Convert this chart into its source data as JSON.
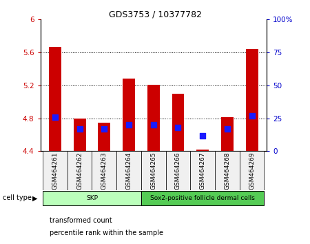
{
  "title": "GDS3753 / 10377782",
  "samples": [
    "GSM464261",
    "GSM464262",
    "GSM464263",
    "GSM464264",
    "GSM464265",
    "GSM464266",
    "GSM464267",
    "GSM464268",
    "GSM464269"
  ],
  "transformed_count": [
    5.67,
    4.8,
    4.75,
    5.28,
    5.21,
    5.1,
    4.42,
    4.81,
    5.64
  ],
  "percentile_rank": [
    26,
    17,
    17,
    20,
    20,
    18,
    12,
    17,
    27
  ],
  "ylim_left": [
    4.4,
    6.0
  ],
  "ylim_right": [
    0,
    100
  ],
  "yticks_left": [
    4.4,
    4.8,
    5.2,
    5.6,
    6.0
  ],
  "ytick_labels_left": [
    "4.4",
    "4.8",
    "5.2",
    "5.6",
    "6"
  ],
  "yticks_right": [
    0,
    25,
    50,
    75,
    100
  ],
  "ytick_labels_right": [
    "0",
    "25",
    "50",
    "75",
    "100%"
  ],
  "grid_yticks": [
    4.8,
    5.2,
    5.6
  ],
  "bar_color": "#cc0000",
  "dot_color": "#1a1aff",
  "bar_width": 0.5,
  "dot_size": 28,
  "cell_types": [
    {
      "label": "SKP",
      "spans": [
        0,
        4
      ],
      "color": "#bbffbb"
    },
    {
      "label": "Sox2-positive follicle dermal cells",
      "spans": [
        4,
        9
      ],
      "color": "#55cc55"
    }
  ],
  "cell_type_label": "cell type",
  "legend_items": [
    {
      "color": "#cc0000",
      "label": "transformed count"
    },
    {
      "color": "#1a1aff",
      "label": "percentile rank within the sample"
    }
  ],
  "base_value": 4.4,
  "right_axis_color": "#0000cc",
  "left_axis_color": "#cc0000",
  "bg_color": "#f0f0f0",
  "plot_bg": "#ffffff"
}
